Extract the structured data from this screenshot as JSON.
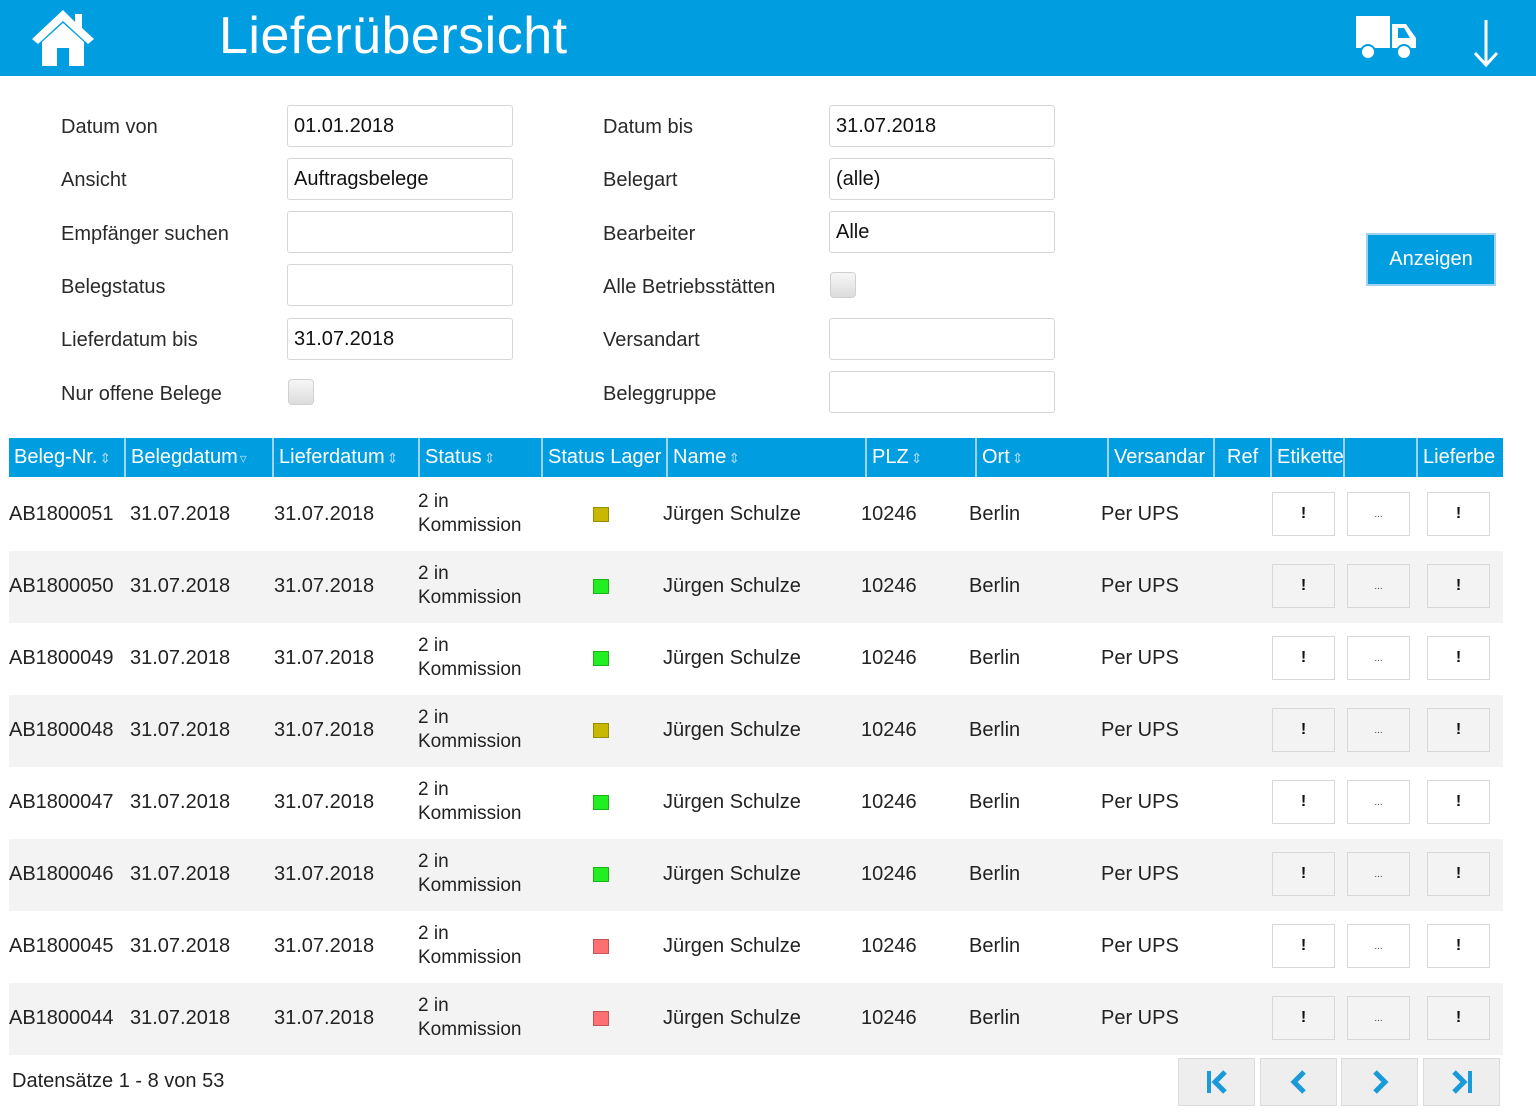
{
  "header": {
    "title": "Lieferübersicht",
    "icons": {
      "home": "home-icon",
      "truck": "truck-icon",
      "download": "arrow-down-icon"
    },
    "color": "#009de0"
  },
  "filters": {
    "left": [
      {
        "label": "Datum von",
        "value": "01.01.2018",
        "type": "text"
      },
      {
        "label": "Ansicht",
        "value": "Auftragsbelege",
        "type": "text"
      },
      {
        "label": "Empfänger suchen",
        "value": "",
        "type": "text"
      },
      {
        "label": "Belegstatus",
        "value": "",
        "type": "text"
      },
      {
        "label": "Lieferdatum bis",
        "value": "31.07.2018",
        "type": "text"
      },
      {
        "label": "Nur offene Belege",
        "checked": false,
        "type": "checkbox"
      }
    ],
    "right": [
      {
        "label": "Datum bis",
        "value": "31.07.2018",
        "type": "text"
      },
      {
        "label": "Belegart",
        "value": "(alle)",
        "type": "text"
      },
      {
        "label": "Bearbeiter",
        "value": "Alle",
        "type": "text"
      },
      {
        "label": "Alle Betriebsstätten",
        "checked": false,
        "type": "checkbox"
      },
      {
        "label": "Versandart",
        "value": "",
        "type": "text"
      },
      {
        "label": "Beleggruppe",
        "value": "",
        "type": "text"
      }
    ],
    "submit_label": "Anzeigen"
  },
  "table": {
    "columns": [
      {
        "label": "Beleg-Nr.",
        "sort": "⇕"
      },
      {
        "label": "Belegdatum",
        "sort": "▿"
      },
      {
        "label": "Lieferdatum",
        "sort": "⇕"
      },
      {
        "label": "Status",
        "sort": "⇕"
      },
      {
        "label": "Status Lager",
        "sort": ""
      },
      {
        "label": "Name",
        "sort": "⇕"
      },
      {
        "label": "PLZ",
        "sort": "⇕"
      },
      {
        "label": "Ort",
        "sort": "⇕"
      },
      {
        "label": "Versandar",
        "sort": ""
      },
      {
        "label": "Ref",
        "sort": ""
      },
      {
        "label": "Etikette",
        "sort": ""
      },
      {
        "label": "",
        "sort": ""
      },
      {
        "label": "Lieferbe",
        "sort": ""
      }
    ],
    "lager_colors": {
      "yellow": "#c8b800",
      "green": "#22ee22",
      "red": "#ff7070"
    },
    "rows": [
      {
        "beleg": "AB1800051",
        "belegdatum": "31.07.2018",
        "lieferdatum": "31.07.2018",
        "status_line1": "2 in",
        "status_line2": "Kommission",
        "lager": "yellow",
        "name": "Jürgen Schulze",
        "plz": "10246",
        "ort": "Berlin",
        "versand": "Per UPS",
        "ref": "",
        "btn1": "!",
        "btn2": "...",
        "btn3": "!"
      },
      {
        "beleg": "AB1800050",
        "belegdatum": "31.07.2018",
        "lieferdatum": "31.07.2018",
        "status_line1": "2 in",
        "status_line2": "Kommission",
        "lager": "green",
        "name": "Jürgen Schulze",
        "plz": "10246",
        "ort": "Berlin",
        "versand": "Per UPS",
        "ref": "",
        "btn1": "!",
        "btn2": "...",
        "btn3": "!"
      },
      {
        "beleg": "AB1800049",
        "belegdatum": "31.07.2018",
        "lieferdatum": "31.07.2018",
        "status_line1": "2 in",
        "status_line2": "Kommission",
        "lager": "green",
        "name": "Jürgen Schulze",
        "plz": "10246",
        "ort": "Berlin",
        "versand": "Per UPS",
        "ref": "",
        "btn1": "!",
        "btn2": "...",
        "btn3": "!"
      },
      {
        "beleg": "AB1800048",
        "belegdatum": "31.07.2018",
        "lieferdatum": "31.07.2018",
        "status_line1": "2 in",
        "status_line2": "Kommission",
        "lager": "yellow",
        "name": "Jürgen Schulze",
        "plz": "10246",
        "ort": "Berlin",
        "versand": "Per UPS",
        "ref": "",
        "btn1": "!",
        "btn2": "...",
        "btn3": "!"
      },
      {
        "beleg": "AB1800047",
        "belegdatum": "31.07.2018",
        "lieferdatum": "31.07.2018",
        "status_line1": "2 in",
        "status_line2": "Kommission",
        "lager": "green",
        "name": "Jürgen Schulze",
        "plz": "10246",
        "ort": "Berlin",
        "versand": "Per UPS",
        "ref": "",
        "btn1": "!",
        "btn2": "...",
        "btn3": "!"
      },
      {
        "beleg": "AB1800046",
        "belegdatum": "31.07.2018",
        "lieferdatum": "31.07.2018",
        "status_line1": "2 in",
        "status_line2": "Kommission",
        "lager": "green",
        "name": "Jürgen Schulze",
        "plz": "10246",
        "ort": "Berlin",
        "versand": "Per UPS",
        "ref": "",
        "btn1": "!",
        "btn2": "...",
        "btn3": "!"
      },
      {
        "beleg": "AB1800045",
        "belegdatum": "31.07.2018",
        "lieferdatum": "31.07.2018",
        "status_line1": "2 in",
        "status_line2": "Kommission",
        "lager": "red",
        "name": "Jürgen Schulze",
        "plz": "10246",
        "ort": "Berlin",
        "versand": "Per UPS",
        "ref": "",
        "btn1": "!",
        "btn2": "...",
        "btn3": "!"
      },
      {
        "beleg": "AB1800044",
        "belegdatum": "31.07.2018",
        "lieferdatum": "31.07.2018",
        "status_line1": "2 in",
        "status_line2": "Kommission",
        "lager": "red",
        "name": "Jürgen Schulze",
        "plz": "10246",
        "ort": "Berlin",
        "versand": "Per UPS",
        "ref": "",
        "btn1": "!",
        "btn2": "...",
        "btn3": "!"
      }
    ]
  },
  "pagination": {
    "summary": "Datensätze 1 - 8 von 53",
    "buttons": [
      "first-page-icon",
      "prev-page-icon",
      "next-page-icon",
      "last-page-icon"
    ]
  }
}
